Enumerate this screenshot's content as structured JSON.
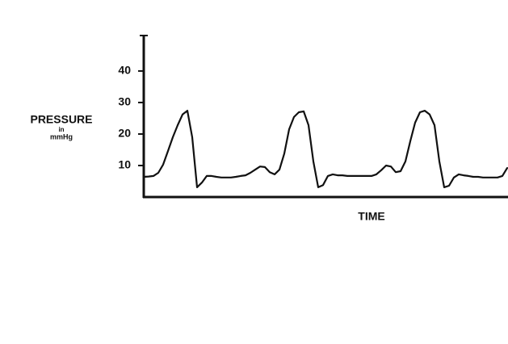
{
  "chart_data": {
    "type": "line",
    "ylabel": [
      "PRESSURE",
      "in",
      "mmHg"
    ],
    "xlabel": "TIME",
    "ylim": [
      0,
      51
    ],
    "yticks": [
      10,
      20,
      30,
      40
    ],
    "color": "#111111",
    "values": [
      6.4,
      6.5,
      6.7,
      7.7,
      10.3,
      14.6,
      19.0,
      22.8,
      26.2,
      27.4,
      19.0,
      3.1,
      4.6,
      6.7,
      6.7,
      6.4,
      6.2,
      6.2,
      6.2,
      6.4,
      6.7,
      6.9,
      7.7,
      8.7,
      9.7,
      9.5,
      7.9,
      7.2,
      8.7,
      13.8,
      21.5,
      25.4,
      26.9,
      27.2,
      22.8,
      11.3,
      3.1,
      3.8,
      6.7,
      7.2,
      6.9,
      6.9,
      6.7,
      6.7,
      6.7,
      6.7,
      6.7,
      6.7,
      7.2,
      8.5,
      10.0,
      9.7,
      7.9,
      8.2,
      11.3,
      17.7,
      23.6,
      26.9,
      27.4,
      26.2,
      22.8,
      11.3,
      3.1,
      3.6,
      6.2,
      7.2,
      6.9,
      6.7,
      6.4,
      6.4,
      6.2,
      6.2,
      6.2,
      6.2,
      6.7,
      9.2
    ]
  }
}
